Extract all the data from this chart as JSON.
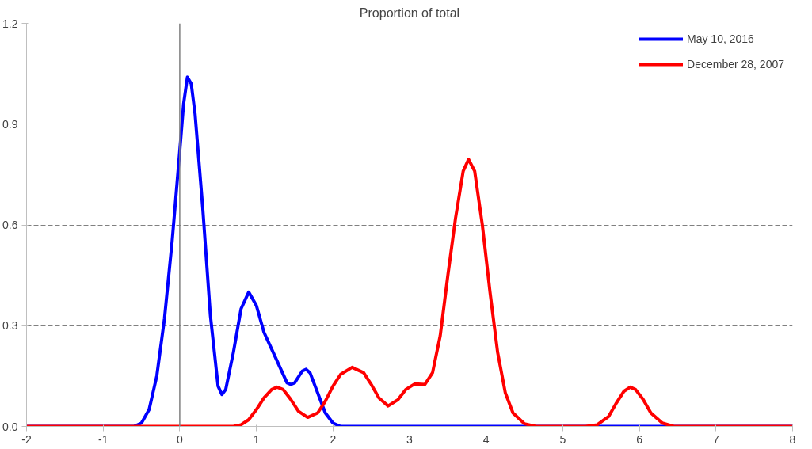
{
  "chart_data": {
    "type": "line",
    "title": "Proportion of total",
    "xlim": [
      -2,
      8
    ],
    "xticks": [
      -2,
      -1,
      0,
      1,
      2,
      3,
      4,
      5,
      6,
      7,
      8
    ],
    "ylim": [
      0,
      1.2
    ],
    "yticks": [
      {
        "value": 0,
        "label": "0.0"
      },
      0.3,
      0.6,
      0.9,
      {
        "value": 1.2,
        "label": "1.2"
      }
    ],
    "grid": "y",
    "legend": "top right",
    "line_style": "solid",
    "ref_lines": [
      {
        "axis": "x",
        "value": 0,
        "label": null,
        "color": "#7f7f7f"
      }
    ],
    "series": [
      {
        "name": "May 10, 2016",
        "color": "#0000ff",
        "x": [
          -2,
          -1,
          -0.6,
          -0.5,
          -0.4,
          -0.3,
          -0.2,
          -0.1,
          0,
          0.05,
          0.1,
          0.15,
          0.2,
          0.3,
          0.4,
          0.5,
          0.55,
          0.6,
          0.7,
          0.8,
          0.9,
          1.0,
          1.1,
          1.2,
          1.3,
          1.4,
          1.45,
          1.5,
          1.6,
          1.65,
          1.7,
          1.8,
          1.9,
          2.0,
          2.1,
          3,
          4,
          5,
          6,
          7,
          8
        ],
        "values": [
          0,
          0,
          0,
          0.01,
          0.05,
          0.15,
          0.32,
          0.55,
          0.82,
          0.96,
          1.04,
          1.02,
          0.93,
          0.65,
          0.33,
          0.12,
          0.095,
          0.11,
          0.22,
          0.35,
          0.4,
          0.36,
          0.28,
          0.23,
          0.18,
          0.13,
          0.125,
          0.13,
          0.165,
          0.17,
          0.16,
          0.1,
          0.04,
          0.01,
          0,
          0,
          0,
          0,
          0,
          0,
          0
        ]
      },
      {
        "name": "December 28, 2007",
        "color": "#ff0000",
        "x": [
          -2,
          -1,
          0,
          0.7,
          0.8,
          0.9,
          1.0,
          1.1,
          1.2,
          1.27,
          1.35,
          1.45,
          1.55,
          1.67,
          1.8,
          1.9,
          2.0,
          2.1,
          2.25,
          2.4,
          2.5,
          2.6,
          2.72,
          2.85,
          2.95,
          3.07,
          3.2,
          3.3,
          3.4,
          3.5,
          3.6,
          3.7,
          3.77,
          3.85,
          3.95,
          4.05,
          4.15,
          4.25,
          4.35,
          4.5,
          4.65,
          5.3,
          5.45,
          5.6,
          5.7,
          5.8,
          5.88,
          5.95,
          6.05,
          6.15,
          6.3,
          6.45,
          7,
          8
        ],
        "values": [
          0,
          0,
          0,
          0,
          0.005,
          0.02,
          0.05,
          0.085,
          0.11,
          0.117,
          0.11,
          0.08,
          0.045,
          0.027,
          0.04,
          0.075,
          0.12,
          0.155,
          0.176,
          0.16,
          0.125,
          0.085,
          0.061,
          0.08,
          0.11,
          0.127,
          0.125,
          0.16,
          0.27,
          0.45,
          0.62,
          0.76,
          0.795,
          0.76,
          0.6,
          0.4,
          0.22,
          0.1,
          0.04,
          0.008,
          0,
          0,
          0.005,
          0.03,
          0.07,
          0.105,
          0.117,
          0.11,
          0.08,
          0.04,
          0.01,
          0,
          0,
          0
        ]
      }
    ]
  }
}
